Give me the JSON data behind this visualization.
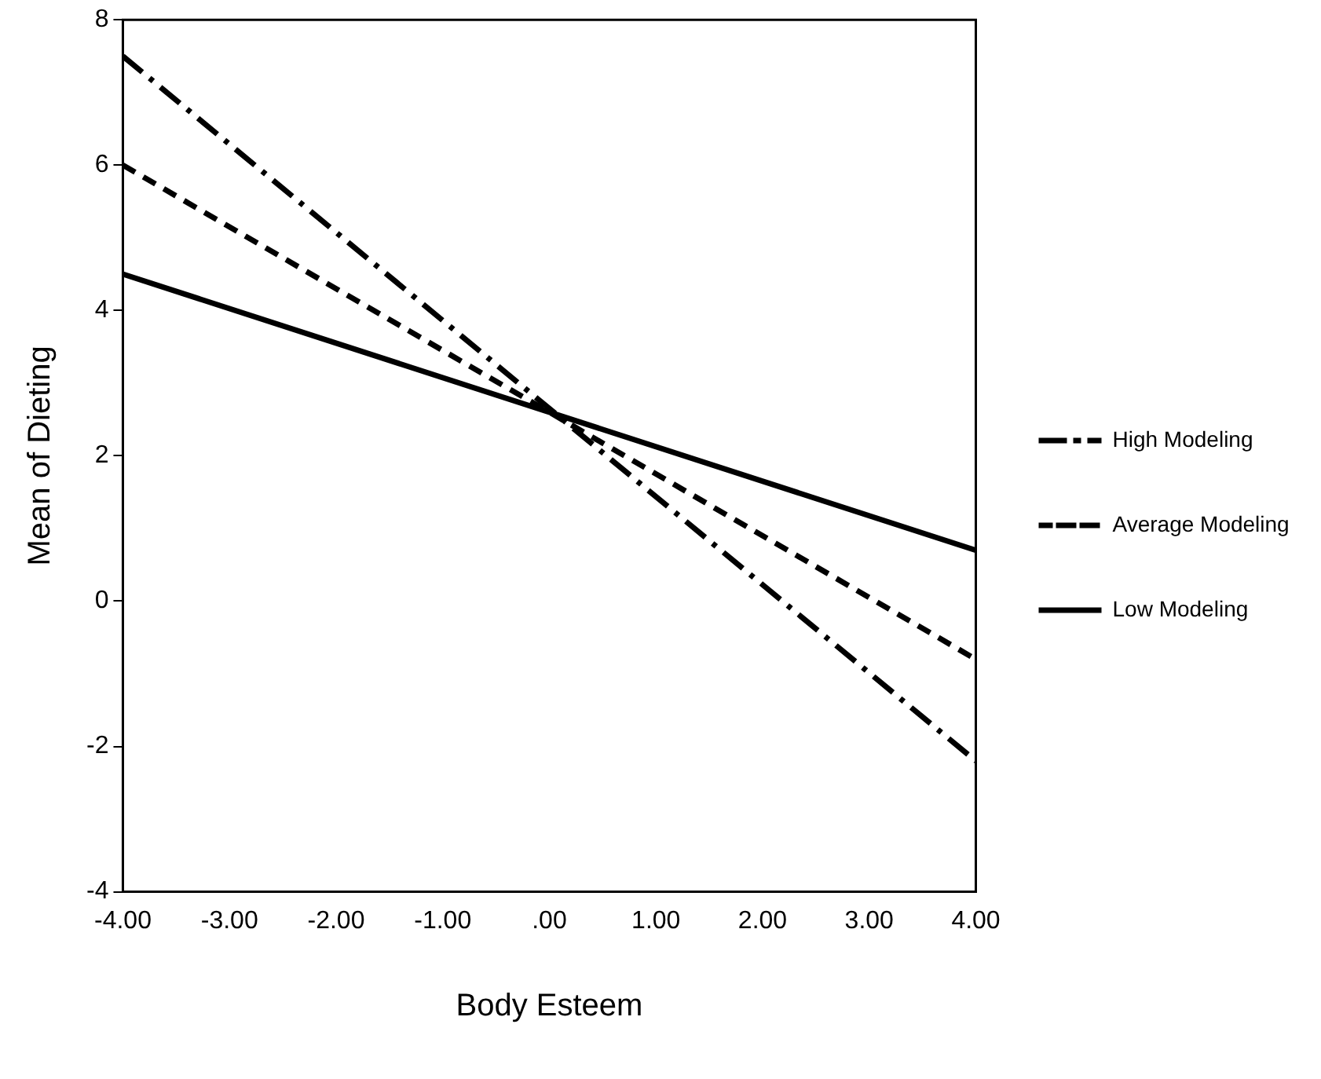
{
  "chart_data": {
    "type": "line",
    "xlabel": "Body Esteem",
    "ylabel": "Mean of Dieting",
    "x": [
      -4,
      4
    ],
    "series": [
      {
        "name": "High Modeling",
        "color": "#000000",
        "values": [
          7.5,
          -2.2
        ],
        "line_style": "dashdot"
      },
      {
        "name": "Average Modeling",
        "color": "#000000",
        "values": [
          6,
          -0.8
        ],
        "line_style": "dashed"
      },
      {
        "name": "Low Modeling",
        "color": "#000000",
        "values": [
          4.5,
          0.7
        ],
        "line_style": "solid"
      }
    ],
    "xlim": [
      -4,
      4
    ],
    "xticks": [
      {
        "value": -4,
        "label": "-4.00"
      },
      {
        "value": -3,
        "label": "-3.00"
      },
      {
        "value": -2,
        "label": "-2.00"
      },
      {
        "value": -1,
        "label": "-1.00"
      },
      {
        "value": 0,
        "label": ".00"
      },
      {
        "value": 1,
        "label": "1.00"
      },
      {
        "value": 2,
        "label": "2.00"
      },
      {
        "value": 3,
        "label": "3.00"
      },
      {
        "value": 4,
        "label": "4.00"
      }
    ],
    "ylim": [
      -4,
      8
    ],
    "yticks": [
      -4,
      -2,
      0,
      2,
      4,
      6,
      8
    ],
    "grid": false,
    "legend": "right",
    "marker": "none"
  }
}
